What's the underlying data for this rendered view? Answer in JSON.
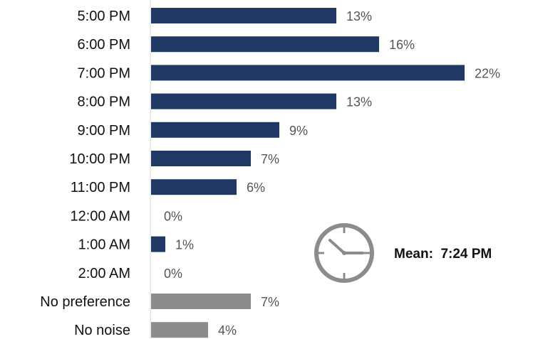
{
  "chart_data": {
    "type": "bar",
    "orientation": "horizontal",
    "title": "",
    "xlabel": "",
    "ylabel": "",
    "xlim": [
      0,
      22
    ],
    "grid": false,
    "legend": "none",
    "categories": [
      "5:00 PM",
      "6:00 PM",
      "7:00 PM",
      "8:00 PM",
      "9:00 PM",
      "10:00 PM",
      "11:00 PM",
      "12:00 AM",
      "1:00 AM",
      "2:00 AM",
      "No preference",
      "No noise"
    ],
    "values": [
      13,
      16,
      22,
      13,
      9,
      7,
      6,
      0,
      1,
      0,
      7,
      4
    ],
    "data_labels": [
      "13%",
      "16%",
      "22%",
      "13%",
      "9%",
      "7%",
      "6%",
      "0%",
      "1%",
      "0%",
      "7%",
      "4%"
    ],
    "bar_colors": [
      "#1f3864",
      "#1f3864",
      "#1f3864",
      "#1f3864",
      "#1f3864",
      "#1f3864",
      "#1f3864",
      "#1f3864",
      "#1f3864",
      "#1f3864",
      "#8c8c8c",
      "#8c8c8c"
    ],
    "annotation": {
      "icon": "clock-icon",
      "icon_color": "#8c8c8c",
      "text": "Mean:  7:24 PM"
    }
  }
}
